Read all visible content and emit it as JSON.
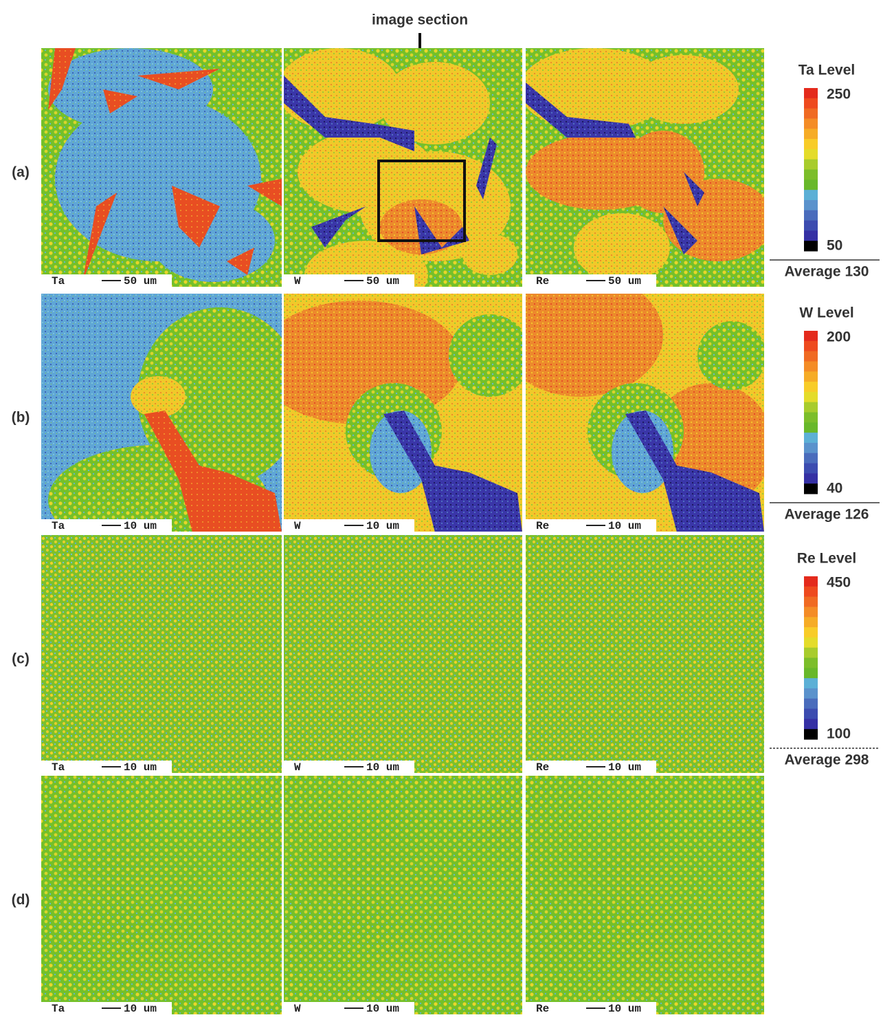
{
  "annotation": "image section",
  "rows": [
    {
      "label": "(a)",
      "panels": [
        {
          "element": "Ta",
          "scale": "50 um"
        },
        {
          "element": "W",
          "scale": "50 um"
        },
        {
          "element": "Re",
          "scale": "50 um"
        }
      ]
    },
    {
      "label": "(b)",
      "panels": [
        {
          "element": "Ta",
          "scale": "10 um"
        },
        {
          "element": "W",
          "scale": "10 um"
        },
        {
          "element": "Re",
          "scale": "10 um"
        }
      ]
    },
    {
      "label": "(c)",
      "panels": [
        {
          "element": "Ta",
          "scale": "10 um"
        },
        {
          "element": "W",
          "scale": "10 um"
        },
        {
          "element": "Re",
          "scale": "10 um"
        }
      ]
    },
    {
      "label": "(d)",
      "panels": [
        {
          "element": "Ta",
          "scale": "10 um"
        },
        {
          "element": "W",
          "scale": "10 um"
        },
        {
          "element": "Re",
          "scale": "10 um"
        }
      ]
    }
  ],
  "legends": [
    {
      "title": "Ta Level",
      "max": "250",
      "min": "50",
      "average": "Average 130"
    },
    {
      "title": "W Level",
      "max": "200",
      "min": "40",
      "average": "Average 126"
    },
    {
      "title": "Re Level",
      "max": "450",
      "min": "100",
      "average": "Average 298"
    }
  ]
}
